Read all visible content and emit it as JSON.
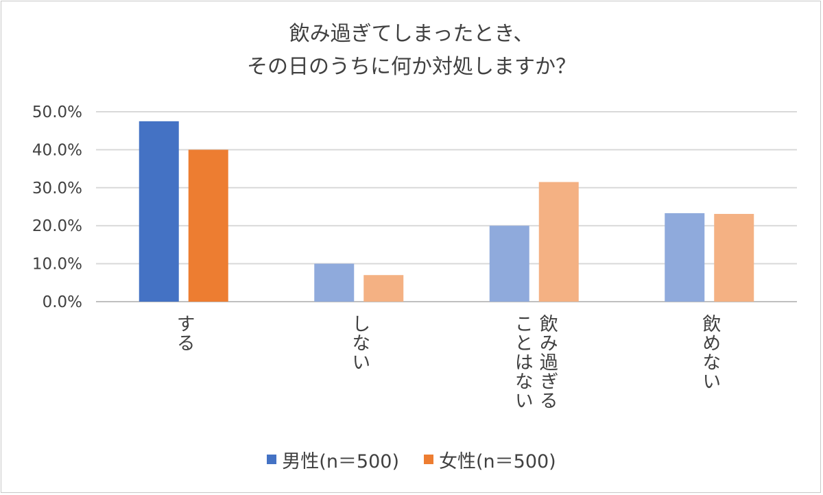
{
  "chart_data": {
    "type": "bar",
    "title_lines": [
      "飲み過ぎてしまったとき、",
      "その日のうちに何か対処しますか？"
    ],
    "categories": [
      "する",
      "しない",
      "飲み過ぎることはない",
      "飲めない"
    ],
    "category_label_columns": [
      [
        "する"
      ],
      [
        "しない"
      ],
      [
        "飲み過ぎる",
        "ことはない"
      ],
      [
        "飲めない"
      ]
    ],
    "series": [
      {
        "name": "男性(n＝500)",
        "values": [
          47.5,
          10.0,
          20.0,
          23.3
        ],
        "color": "#4472c4",
        "highlight_color": "#4472c4",
        "muted_color": "#8faadc"
      },
      {
        "name": "女性(n＝500)",
        "values": [
          40.0,
          7.0,
          31.5,
          23.1
        ],
        "color": "#ed7d31",
        "highlight_color": "#ed7d31",
        "muted_color": "#f4b183"
      }
    ],
    "highlight_category_index": 0,
    "ylim": [
      0,
      50
    ],
    "yticks": [
      "0.0%",
      "10.0%",
      "20.0%",
      "30.0%",
      "40.0%",
      "50.0%"
    ],
    "xlabel": "",
    "ylabel": "",
    "grid": true,
    "legend_position": "bottom"
  }
}
